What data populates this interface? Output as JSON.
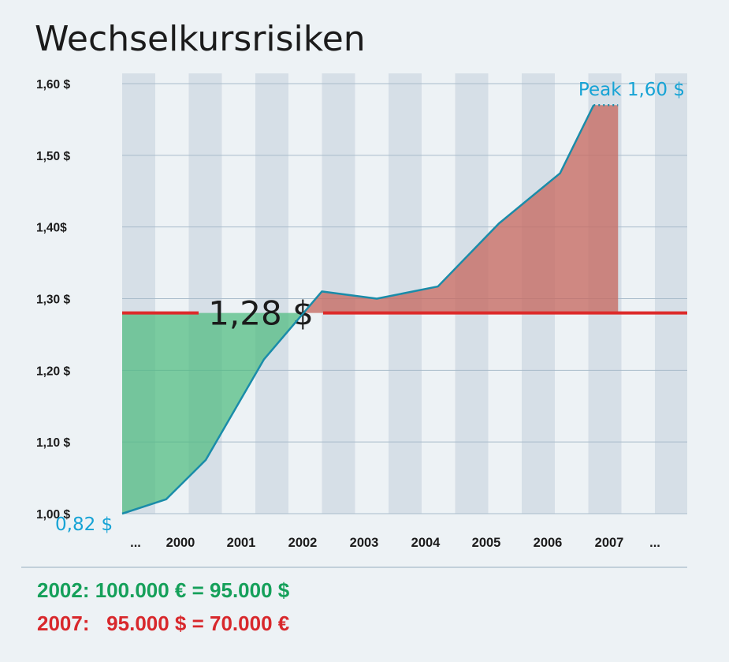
{
  "title": "Wechselkursrisiken",
  "colors": {
    "background": "#edf2f5",
    "column_band": "#d6dfe7",
    "gridline": "#a9bccb",
    "line": "#1a8ca9",
    "reference_line": "#dd2a2a",
    "gain_fill": "#4dbb7f",
    "loss_fill": "#c76a62",
    "annotation": "#16a3d5",
    "footer_green": "#15a05a",
    "footer_red": "#d8282c"
  },
  "chart_data": {
    "type": "area",
    "title": "Wechselkursrisiken",
    "xlabel": "",
    "ylabel": "",
    "categories": [
      "...",
      "2000",
      "2001",
      "2002",
      "2003",
      "2004",
      "2005",
      "2006",
      "2007",
      "..."
    ],
    "y_ticks": [
      {
        "value": 1.0,
        "label": "1,00 $"
      },
      {
        "value": 1.1,
        "label": "1,10 $"
      },
      {
        "value": 1.2,
        "label": "1,20 $"
      },
      {
        "value": 1.3,
        "label": "1,30 $"
      },
      {
        "value": 1.4,
        "label": "1,40$"
      },
      {
        "value": 1.5,
        "label": "1,50 $"
      },
      {
        "value": 1.6,
        "label": "1,60 $"
      }
    ],
    "ylim": [
      1.0,
      1.6
    ],
    "reference_value": 1.28,
    "reference_label": "1,28 $",
    "series": [
      {
        "x": [
          -0.5,
          0.5,
          1.15,
          2.1,
          3.05,
          3.95,
          4.95,
          5.95,
          6.95,
          7.5
        ],
        "y": [
          1.0,
          1.02,
          1.075,
          1.215,
          1.31,
          1.3,
          1.317,
          1.405,
          1.475,
          1.57
        ]
      }
    ],
    "dotted_segment": {
      "x": [
        7.5,
        7.9
      ],
      "y": [
        1.475,
        1.57
      ]
    },
    "annotations": {
      "start_value": "0,82 $",
      "peak": "Peak 1,60 $"
    },
    "grid": true,
    "column_bands": true
  },
  "footer": {
    "line1": "2002: 100.000 € = 95.000 $",
    "line2": "2007:   95.000 $ = 70.000 €"
  }
}
